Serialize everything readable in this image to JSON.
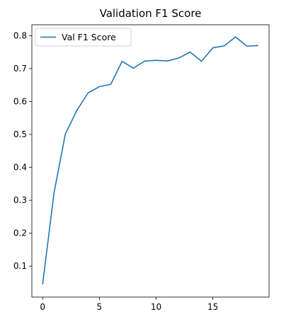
{
  "chart_data": {
    "type": "line",
    "title": "Validation F1 Score",
    "xlabel": "",
    "ylabel": "",
    "xlim": [
      -0.95,
      19.95
    ],
    "ylim": [
      0.006,
      0.833
    ],
    "xticks": [
      0,
      5,
      10,
      15
    ],
    "yticks": [
      0.1,
      0.2,
      0.3,
      0.4,
      0.5,
      0.6,
      0.7,
      0.8
    ],
    "legend_position": "top-left",
    "grid": false,
    "series": [
      {
        "name": "Val F1 Score",
        "color": "#1f77b4",
        "x": [
          0,
          1,
          2,
          3,
          4,
          5,
          6,
          7,
          8,
          9,
          10,
          11,
          12,
          13,
          14,
          15,
          16,
          17,
          18,
          19
        ],
        "values": [
          0.045,
          0.322,
          0.501,
          0.572,
          0.626,
          0.645,
          0.652,
          0.722,
          0.701,
          0.723,
          0.725,
          0.723,
          0.732,
          0.75,
          0.722,
          0.763,
          0.769,
          0.796,
          0.768,
          0.77
        ]
      }
    ]
  }
}
